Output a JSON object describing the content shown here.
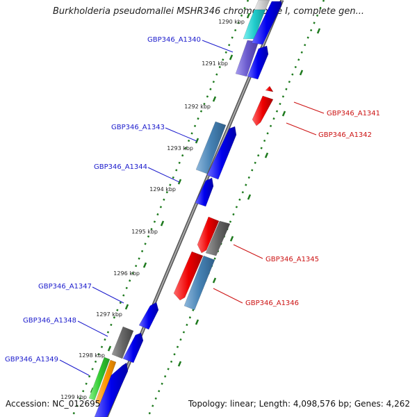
{
  "title": "Burkholderia pseudomallei MSHR346 chromosome I, complete gen...",
  "footer": {
    "accession": "Accession: NC_012695",
    "summary": "Topology: linear; Length: 4,098,576 bp; Genes: 4,262"
  },
  "colors": {
    "forward_gene": "#0000ee",
    "reverse_gene": "#ee0000",
    "forward_label": "#1a1acc",
    "reverse_label": "#cc1111",
    "backbone": "#888888",
    "tick_marks": "#1e7a1e"
  },
  "ticks": [
    {
      "label": "1290 kbp"
    },
    {
      "label": "1291 kbp"
    },
    {
      "label": "1292 kbp"
    },
    {
      "label": "1293 kbp"
    },
    {
      "label": "1294 kbp"
    },
    {
      "label": "1295 kbp"
    },
    {
      "label": "1296 kbp"
    },
    {
      "label": "1297 kbp"
    },
    {
      "label": "1298 kbp"
    },
    {
      "label": "1299 kbp"
    }
  ],
  "gene_labels": {
    "forward": [
      "GBP346_A1340",
      "GBP346_A1343",
      "GBP346_A1344",
      "GBP346_A1347",
      "GBP346_A1348",
      "GBP346_A1349"
    ],
    "reverse": [
      "GBP346_A1341",
      "GBP346_A1342",
      "GBP346_A1345",
      "GBP346_A1346"
    ]
  }
}
